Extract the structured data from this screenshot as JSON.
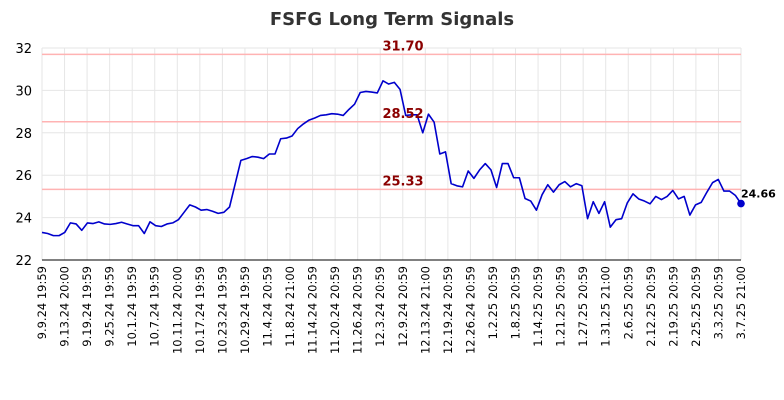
{
  "chart_data": {
    "type": "line",
    "title": "FSFG Long Term Signals",
    "xlabel": "",
    "ylabel": "",
    "ylim": [
      22,
      32
    ],
    "yticks": [
      22,
      24,
      26,
      28,
      30,
      32
    ],
    "grid": true,
    "legend": "none",
    "colors": {
      "line": "#0000cc",
      "reference": "#ffb3b3",
      "reference_label": "#8b0000",
      "grid": "#e6e6e6"
    },
    "xtick_labels": [
      "9.9.24 19:59",
      "9.13.24 20:00",
      "9.19.24 19:59",
      "9.25.24 19:59",
      "10.1.24 19:59",
      "10.7.24 19:59",
      "10.11.24 20:00",
      "10.17.24 19:59",
      "10.23.24 19:59",
      "10.29.24 19:59",
      "11.4.24 20:59",
      "11.8.24 21:00",
      "11.14.24 20:59",
      "11.20.24 20:59",
      "11.26.24 20:59",
      "12.3.24 20:59",
      "12.9.24 20:59",
      "12.13.24 21:00",
      "12.19.24 20:59",
      "12.26.24 20:59",
      "1.2.25 20:59",
      "1.8.25 20:59",
      "1.14.25 20:59",
      "1.21.25 20:59",
      "1.27.25 20:59",
      "1.31.25 21:00",
      "2.6.25 20:59",
      "2.12.25 20:59",
      "2.19.25 20:59",
      "2.25.25 20:59",
      "3.3.25 20:59",
      "3.7.25 21:00"
    ],
    "reference_lines": [
      {
        "value": 31.7,
        "label": "31.70"
      },
      {
        "value": 28.52,
        "label": "28.52"
      },
      {
        "value": 25.33,
        "label": "25.33"
      }
    ],
    "last_value": {
      "value": 24.66,
      "label": "24.66"
    },
    "values": [
      23.3,
      23.25,
      23.15,
      23.15,
      23.3,
      23.75,
      23.7,
      23.4,
      23.75,
      23.72,
      23.8,
      23.7,
      23.68,
      23.72,
      23.78,
      23.7,
      23.62,
      23.62,
      23.25,
      23.8,
      23.62,
      23.58,
      23.7,
      23.75,
      23.9,
      24.25,
      24.6,
      24.5,
      24.35,
      24.38,
      24.3,
      24.2,
      24.25,
      24.5,
      25.6,
      26.7,
      26.78,
      26.88,
      26.85,
      26.78,
      27.0,
      27.0,
      27.72,
      27.75,
      27.85,
      28.2,
      28.42,
      28.6,
      28.7,
      28.82,
      28.85,
      28.9,
      28.88,
      28.82,
      29.1,
      29.35,
      29.9,
      29.95,
      29.92,
      29.88,
      30.45,
      30.3,
      30.38,
      30.05,
      28.82,
      28.85,
      28.85,
      28.0,
      28.88,
      28.5,
      27.0,
      27.1,
      25.6,
      25.5,
      25.45,
      26.2,
      25.85,
      26.25,
      26.55,
      26.25,
      25.42,
      26.55,
      26.55,
      25.88,
      25.88,
      24.9,
      24.78,
      24.35,
      25.08,
      25.55,
      25.2,
      25.55,
      25.7,
      25.45,
      25.6,
      25.5,
      23.95,
      24.75,
      24.2,
      24.75,
      23.55,
      23.9,
      23.95,
      24.7,
      25.12,
      24.88,
      24.78,
      24.65,
      25.0,
      24.85,
      25.0,
      25.28,
      24.88,
      25.0,
      24.12,
      24.6,
      24.72,
      25.2,
      25.65,
      25.8,
      25.25,
      25.25,
      25.05,
      24.66
    ]
  }
}
